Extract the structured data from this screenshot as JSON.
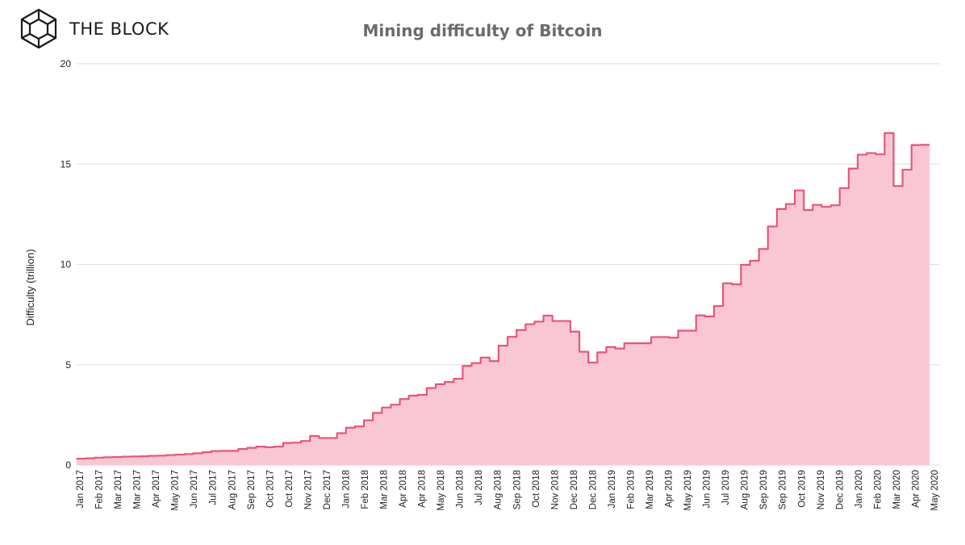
{
  "brand": {
    "name": "THE BLOCK",
    "logo_icon": "cube-logo-icon"
  },
  "chart_data": {
    "type": "area",
    "title": "Mining difficulty of Bitcoin",
    "ylabel": "Difficulty (trillion)",
    "xlabel": "",
    "ylim": [
      0,
      20
    ],
    "yticks": [
      0,
      5,
      10,
      15,
      20
    ],
    "grid": true,
    "step": true,
    "colors": {
      "line": "#e8557a",
      "fill": "#f9c6d3",
      "grid": "#dddddd"
    },
    "x_ticks": [
      "Jan 2017",
      "Feb 2017",
      "Mar 2017",
      "Mar 2017",
      "Apr 2017",
      "May 2017",
      "Jun 2017",
      "Jul 2017",
      "Aug 2017",
      "Sep 2017",
      "Oct 2017",
      "Oct 2017",
      "Nov 2017",
      "Dec 2017",
      "Jan 2018",
      "Feb 2018",
      "Mar 2018",
      "Apr 2018",
      "Apr 2018",
      "May 2018",
      "Jun 2018",
      "Jul 2018",
      "Aug 2018",
      "Sep 2018",
      "Oct 2018",
      "Nov 2018",
      "Dec 2018",
      "Dec 2018",
      "Jan 2019",
      "Feb 2019",
      "Mar 2019",
      "Apr 2019",
      "May 2019",
      "Jun 2019",
      "Jul 2019",
      "Aug 2019",
      "Sep 2019",
      "Sep 2019",
      "Oct 2019",
      "Nov 2019",
      "Dec 2019",
      "Jan 2020",
      "Feb 2020",
      "Mar 2020",
      "Apr 2020",
      "May 2020"
    ],
    "values": [
      0.32,
      0.34,
      0.37,
      0.39,
      0.4,
      0.42,
      0.43,
      0.44,
      0.46,
      0.47,
      0.5,
      0.52,
      0.55,
      0.59,
      0.64,
      0.7,
      0.71,
      0.71,
      0.8,
      0.86,
      0.92,
      0.89,
      0.92,
      1.1,
      1.12,
      1.2,
      1.45,
      1.35,
      1.35,
      1.59,
      1.86,
      1.93,
      2.23,
      2.6,
      2.87,
      3.01,
      3.29,
      3.46,
      3.5,
      3.84,
      4.03,
      4.14,
      4.3,
      4.94,
      5.08,
      5.36,
      5.18,
      5.95,
      6.39,
      6.73,
      7.02,
      7.15,
      7.45,
      7.18,
      7.18,
      6.65,
      5.65,
      5.11,
      5.62,
      5.88,
      5.81,
      6.07,
      6.07,
      6.07,
      6.38,
      6.38,
      6.35,
      6.7,
      6.7,
      7.46,
      7.41,
      7.93,
      9.06,
      9.01,
      9.98,
      10.18,
      10.77,
      11.89,
      12.76,
      13.01,
      13.69,
      12.71,
      12.97,
      12.87,
      12.95,
      13.8,
      14.78,
      15.47,
      15.55,
      15.49,
      16.55,
      13.91,
      14.72,
      15.95,
      15.96
    ]
  }
}
